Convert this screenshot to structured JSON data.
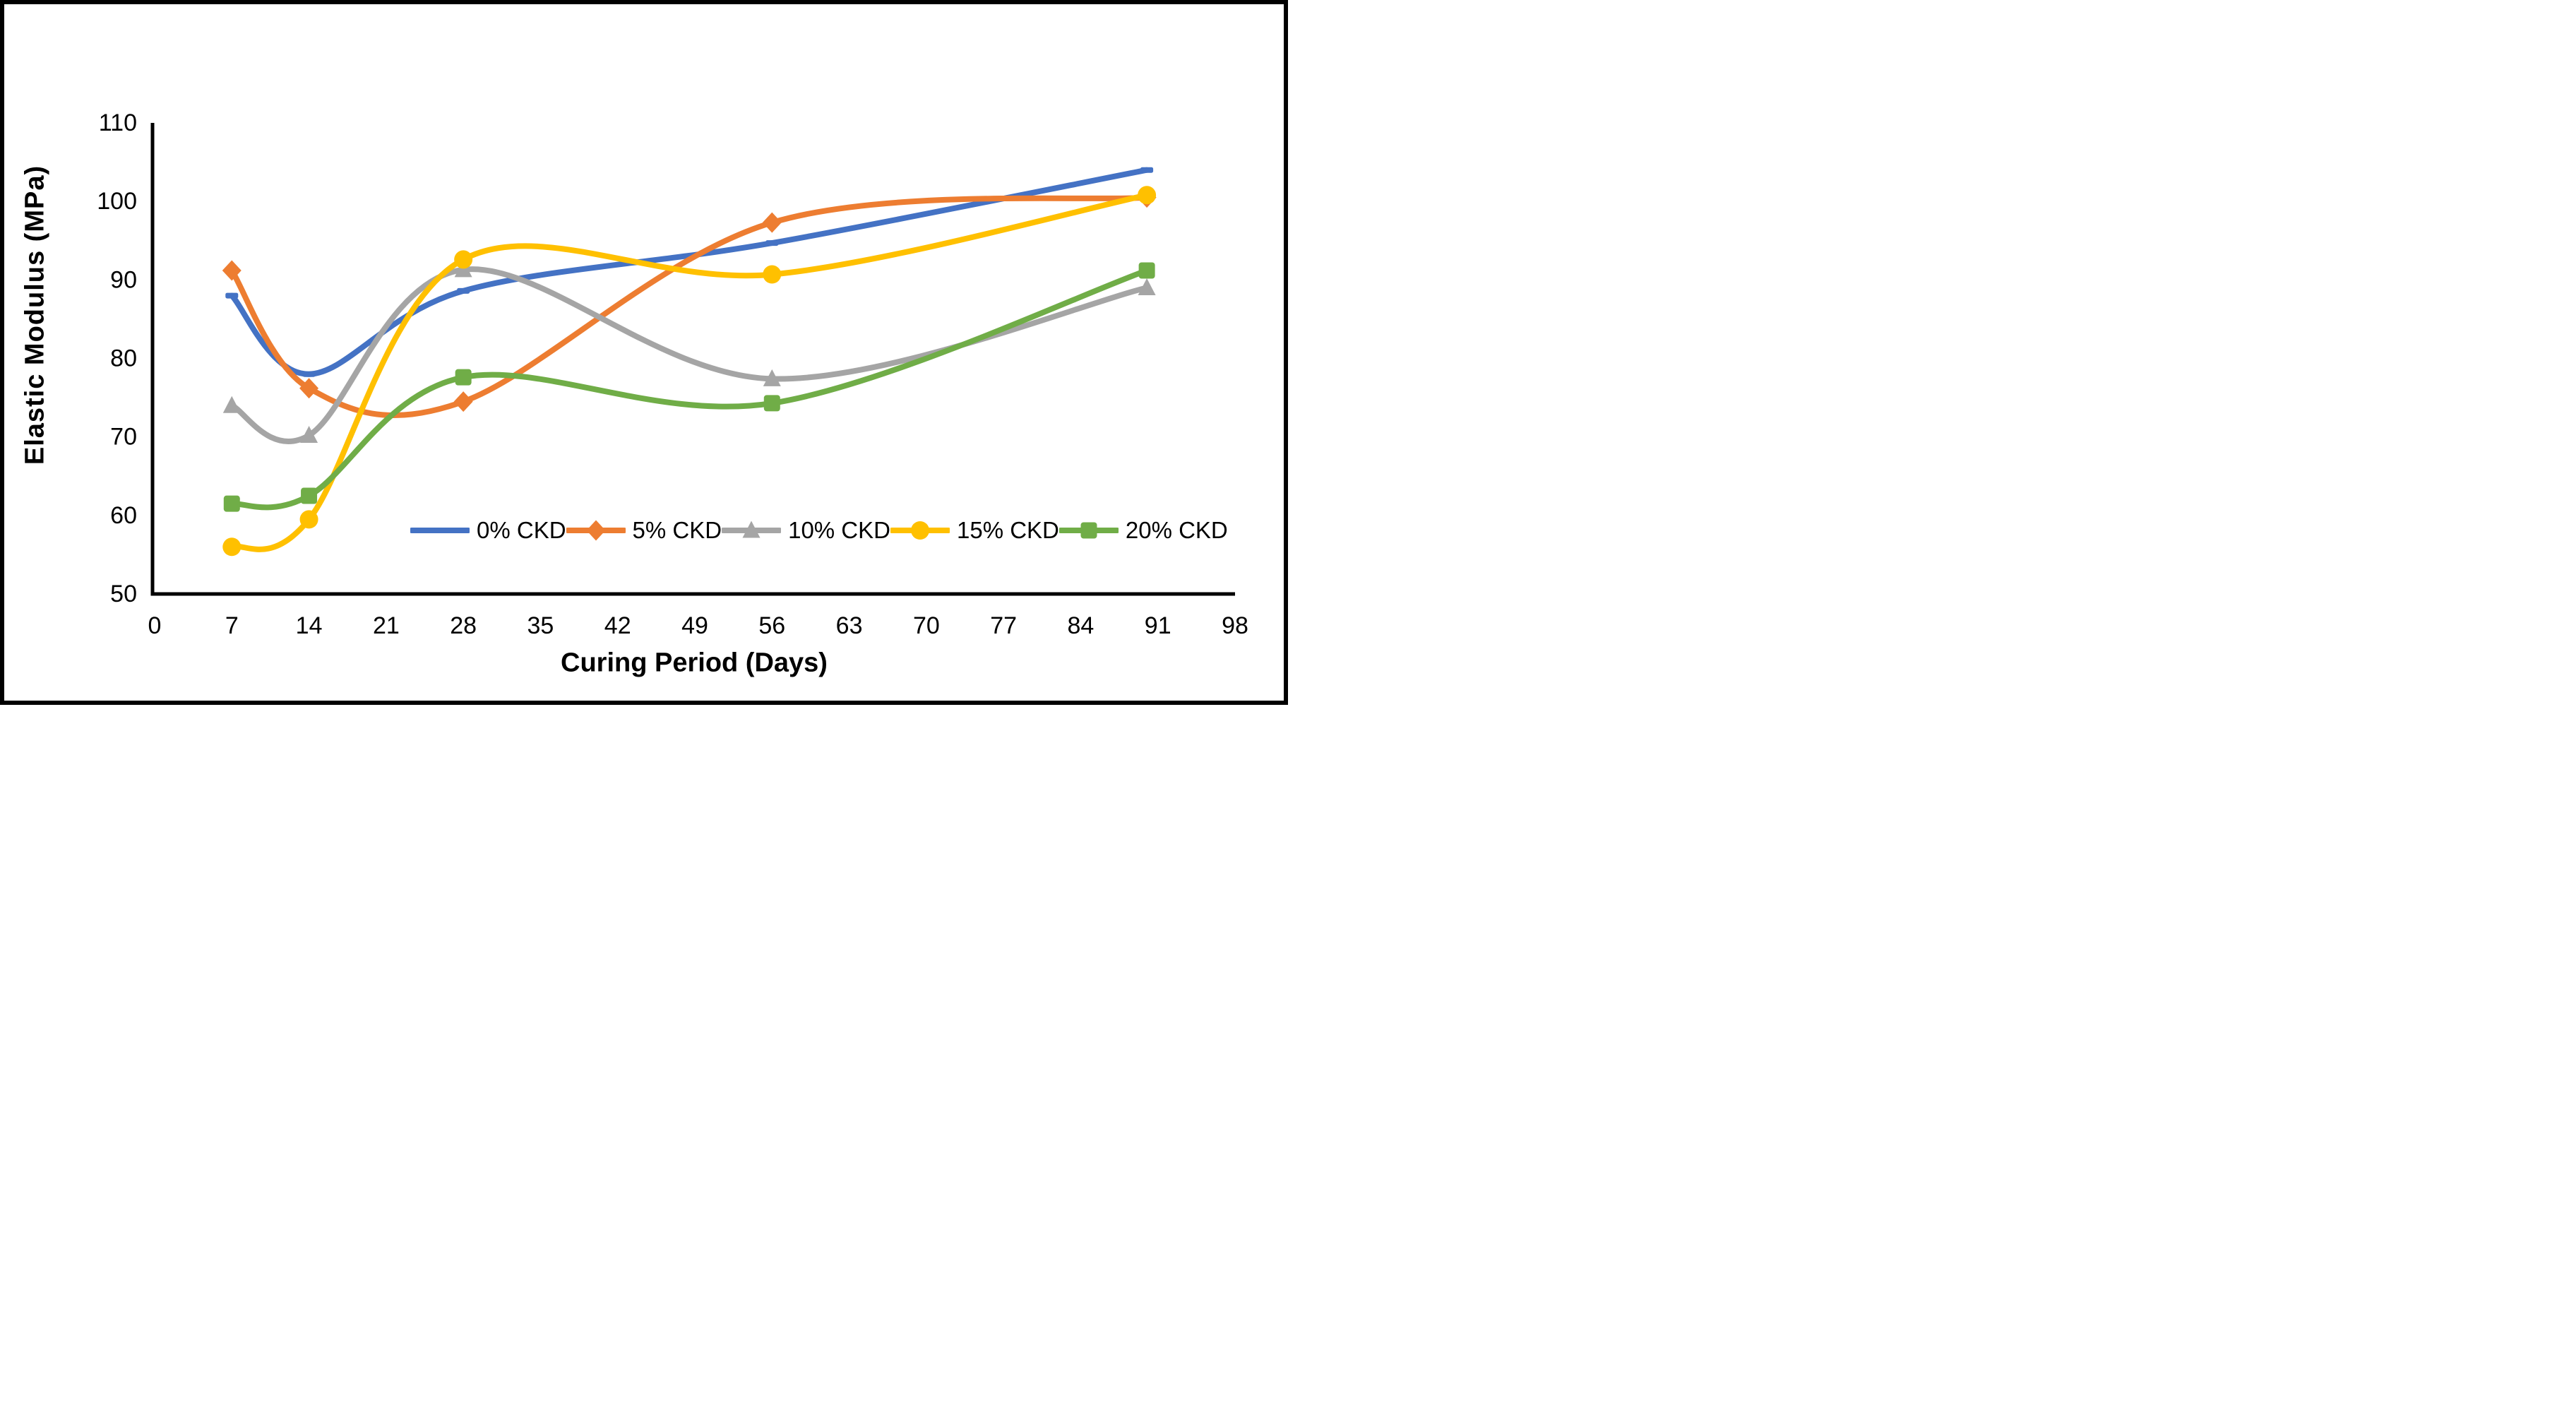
{
  "chart_data": {
    "type": "line",
    "title": "",
    "xlabel": "Curing Period (Days)",
    "ylabel": "Elastic Modulus (MPa)",
    "x": [
      7,
      14,
      28,
      56,
      90
    ],
    "xticks": [
      0,
      7,
      14,
      21,
      28,
      35,
      42,
      49,
      56,
      63,
      70,
      77,
      84,
      91,
      98
    ],
    "yticks": [
      50,
      60,
      70,
      80,
      90,
      100,
      110
    ],
    "xlim": [
      0,
      98
    ],
    "ylim": [
      50,
      110
    ],
    "grid": false,
    "smooth": true,
    "legend_position": "bottom-inside",
    "axis_color": "#000000",
    "series": [
      {
        "name": "0% CKD",
        "color": "#4472C4",
        "marker": "dash",
        "values": [
          88.0,
          78.0,
          88.6,
          94.7,
          104.0
        ]
      },
      {
        "name": "5% CKD",
        "color": "#ED7D31",
        "marker": "diamond",
        "values": [
          91.2,
          76.2,
          74.5,
          97.3,
          100.5
        ]
      },
      {
        "name": "10% CKD",
        "color": "#A5A5A5",
        "marker": "triangle",
        "values": [
          74.0,
          70.2,
          91.3,
          77.4,
          89.0
        ]
      },
      {
        "name": "15% CKD",
        "color": "#FFC000",
        "marker": "circle",
        "values": [
          56.0,
          59.5,
          92.6,
          90.7,
          100.8
        ]
      },
      {
        "name": "20% CKD",
        "color": "#70AD47",
        "marker": "square",
        "values": [
          61.5,
          62.5,
          77.6,
          74.3,
          91.2
        ]
      }
    ]
  }
}
